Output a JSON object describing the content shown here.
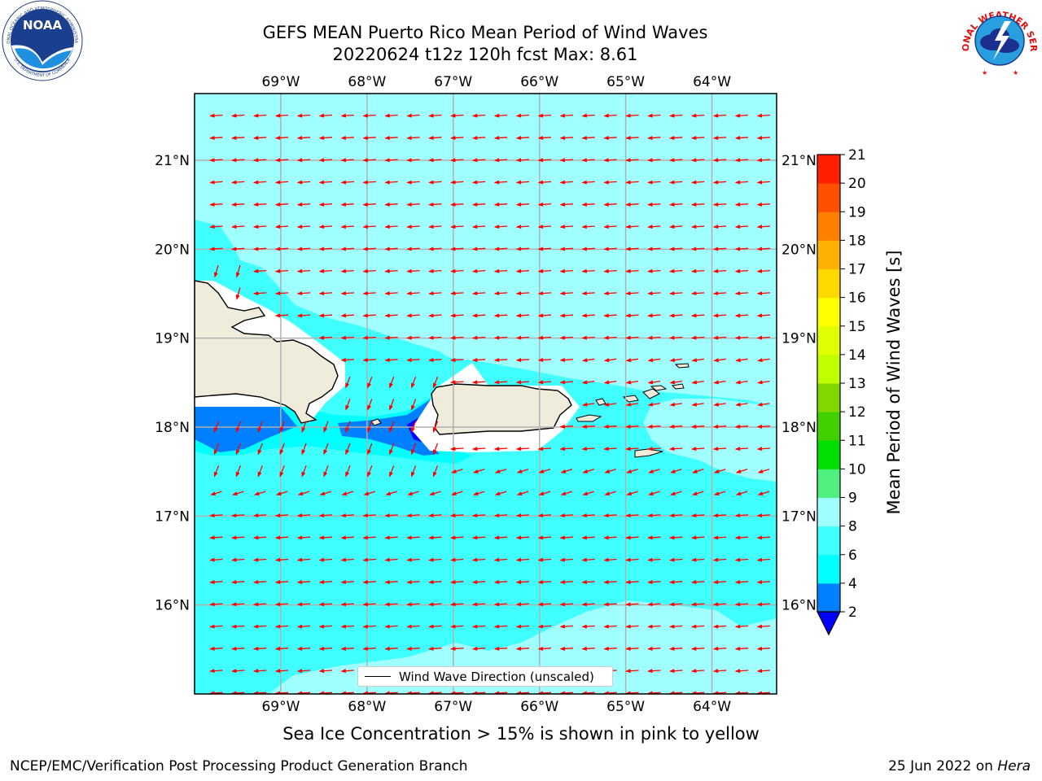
{
  "header": {
    "title_line1": "GEFS MEAN Puerto Rico Mean Period of Wind Waves",
    "title_line2": "20220624 t12z 120h fcst   Max: 8.61"
  },
  "logos": {
    "left": {
      "text": "NOAA",
      "ring_top": "NATIONAL OCEANIC AND ATMOSPHERIC ADMINISTRATION",
      "ring_bottom": "U.S. DEPARTMENT OF COMMERCE"
    },
    "right": {
      "ring_text": "NATIONAL WEATHER SERVICE"
    }
  },
  "map": {
    "lon_labels": [
      "69°W",
      "68°W",
      "67°W",
      "66°W",
      "65°W",
      "64°W"
    ],
    "lat_labels": [
      "21°N",
      "20°N",
      "19°N",
      "18°N",
      "17°N",
      "16°N"
    ],
    "lon_values": [
      -69,
      -68,
      -67,
      -66,
      -65,
      -64
    ],
    "lat_values": [
      21,
      20,
      19,
      18,
      17,
      16
    ],
    "lon_range": [
      -70.0,
      -63.25
    ],
    "lat_range": [
      15.0,
      21.75
    ],
    "arrow_color": "#ff0000",
    "land_color": "#efecdc",
    "grid": true
  },
  "legend": {
    "label": "Wind Wave Direction (unscaled)"
  },
  "colorbar": {
    "title": "Mean Period of Wind Waves [s]",
    "ticks": [
      "2",
      "4",
      "6",
      "8",
      "9",
      "10",
      "11",
      "12",
      "13",
      "14",
      "15",
      "16",
      "17",
      "18",
      "19",
      "20",
      "21"
    ],
    "colors": [
      "#0080ff",
      "#00ffff",
      "#40ffff",
      "#a0ffff",
      "#50f080",
      "#00e000",
      "#40d000",
      "#80d800",
      "#c0ff00",
      "#e0ff00",
      "#ffff00",
      "#ffd800",
      "#ffb000",
      "#ff8000",
      "#ff5000",
      "#ff2000"
    ],
    "under_color": "#0000ff"
  },
  "note": "Sea Ice Concentration > 15% is shown in pink to yellow",
  "footer": {
    "left": "NCEP/EMC/Verification Post Processing Product Generation Branch",
    "right_date": "25 Jun 2022 on",
    "right_host": "Hera"
  }
}
